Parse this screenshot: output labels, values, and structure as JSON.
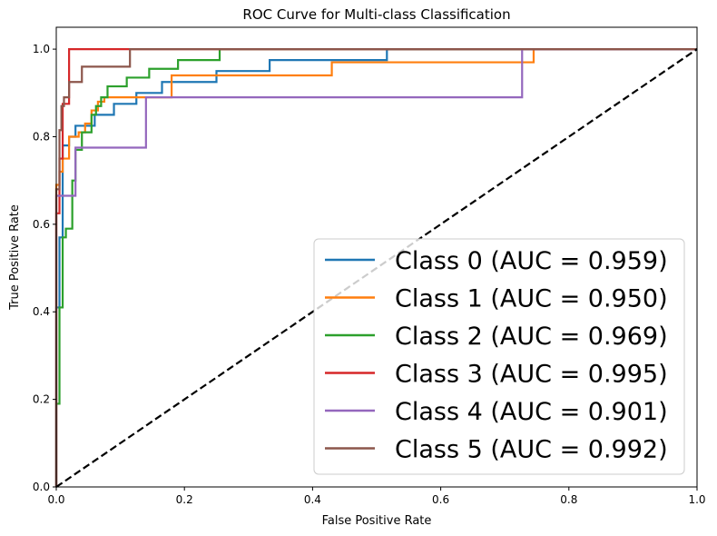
{
  "chart_data": {
    "type": "line",
    "title": "ROC Curve for Multi-class Classification",
    "xlabel": "False Positive Rate",
    "ylabel": "True Positive Rate",
    "xlim": [
      0,
      1
    ],
    "ylim": [
      0,
      1.05
    ],
    "xticks": [
      "0.0",
      "0.2",
      "0.4",
      "0.6",
      "0.8",
      "1.0"
    ],
    "yticks": [
      "0.0",
      "0.2",
      "0.4",
      "0.6",
      "0.8",
      "1.0"
    ],
    "legend_position": "lower right",
    "grid": false,
    "diagonal": {
      "style": "dashed",
      "color": "#000000",
      "x": [
        0,
        1
      ],
      "y": [
        0,
        1
      ]
    },
    "series": [
      {
        "name": "Class 0 (AUC = 0.959)",
        "color": "#1f77b4",
        "x": [
          0,
          0,
          0.005,
          0.005,
          0.01,
          0.01,
          0.02,
          0.02,
          0.03,
          0.03,
          0.06,
          0.06,
          0.09,
          0.09,
          0.125,
          0.125,
          0.165,
          0.165,
          0.25,
          0.25,
          0.333,
          0.333,
          0.516,
          0.516,
          1.0
        ],
        "y": [
          0,
          0.41,
          0.41,
          0.57,
          0.57,
          0.78,
          0.78,
          0.8,
          0.8,
          0.825,
          0.825,
          0.85,
          0.85,
          0.875,
          0.875,
          0.9,
          0.9,
          0.925,
          0.925,
          0.95,
          0.95,
          0.975,
          0.975,
          1.0,
          1.0
        ]
      },
      {
        "name": "Class 1 (AUC = 0.950)",
        "color": "#ff7f0e",
        "x": [
          0,
          0,
          0.005,
          0.005,
          0.01,
          0.01,
          0.02,
          0.02,
          0.035,
          0.035,
          0.045,
          0.045,
          0.055,
          0.055,
          0.065,
          0.065,
          0.075,
          0.075,
          0.18,
          0.18,
          0.43,
          0.43,
          0.745,
          0.745,
          1.0
        ],
        "y": [
          0,
          0.69,
          0.69,
          0.72,
          0.72,
          0.75,
          0.75,
          0.8,
          0.8,
          0.81,
          0.81,
          0.83,
          0.83,
          0.86,
          0.86,
          0.88,
          0.88,
          0.89,
          0.89,
          0.94,
          0.94,
          0.97,
          0.97,
          1.0,
          1.0
        ]
      },
      {
        "name": "Class 2 (AUC = 0.969)",
        "color": "#2ca02c",
        "x": [
          0,
          0,
          0.005,
          0.005,
          0.01,
          0.01,
          0.015,
          0.015,
          0.025,
          0.025,
          0.03,
          0.03,
          0.04,
          0.04,
          0.055,
          0.055,
          0.062,
          0.062,
          0.07,
          0.07,
          0.08,
          0.08,
          0.11,
          0.11,
          0.145,
          0.145,
          0.19,
          0.19,
          0.255,
          0.255,
          1.0
        ],
        "y": [
          0,
          0.19,
          0.19,
          0.41,
          0.41,
          0.57,
          0.57,
          0.59,
          0.59,
          0.7,
          0.7,
          0.77,
          0.77,
          0.81,
          0.81,
          0.85,
          0.85,
          0.87,
          0.87,
          0.89,
          0.89,
          0.915,
          0.915,
          0.935,
          0.935,
          0.955,
          0.955,
          0.975,
          0.975,
          1.0,
          1.0
        ]
      },
      {
        "name": "Class 3 (AUC = 0.995)",
        "color": "#d62728",
        "x": [
          0,
          0,
          0.005,
          0.005,
          0.01,
          0.01,
          0.02,
          0.02,
          1.0
        ],
        "y": [
          0,
          0.625,
          0.625,
          0.75,
          0.75,
          0.875,
          0.875,
          1.0,
          1.0
        ]
      },
      {
        "name": "Class 4 (AUC = 0.901)",
        "color": "#9467bd",
        "x": [
          0,
          0,
          0.03,
          0.03,
          0.14,
          0.14,
          0.727,
          0.727,
          1.0
        ],
        "y": [
          0,
          0.665,
          0.665,
          0.775,
          0.775,
          0.89,
          0.89,
          1.0,
          1.0
        ]
      },
      {
        "name": "Class 5 (AUC = 0.992)",
        "color": "#8c564b",
        "x": [
          0,
          0,
          0.005,
          0.005,
          0.008,
          0.008,
          0.012,
          0.012,
          0.02,
          0.02,
          0.04,
          0.04,
          0.115,
          0.115,
          1.0
        ],
        "y": [
          0,
          0.68,
          0.68,
          0.815,
          0.815,
          0.87,
          0.87,
          0.89,
          0.89,
          0.925,
          0.925,
          0.96,
          0.96,
          1.0,
          1.0
        ]
      }
    ]
  }
}
